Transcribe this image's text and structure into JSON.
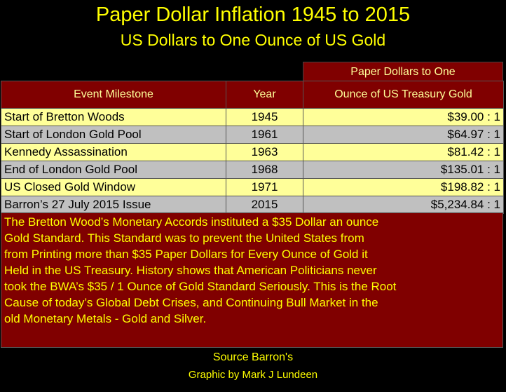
{
  "title": "Paper Dollar Inflation 1945 to 2015",
  "subtitle": "US Dollars to One Ounce of US Gold",
  "table": {
    "header_top": "Paper Dollars to One",
    "headers": [
      "Event Milestone",
      "Year",
      "Ounce of US Treasury Gold"
    ],
    "rows": [
      {
        "event": "Start of Bretton Woods",
        "year": "1945",
        "price": "$39.00 : 1"
      },
      {
        "event": "Start of London Gold Pool",
        "year": "1961",
        "price": "$64.97 : 1"
      },
      {
        "event": "Kennedy Assassination",
        "year": "1963",
        "price": "$81.42 : 1"
      },
      {
        "event": "End of London Gold Pool",
        "year": "1968",
        "price": "$135.01 : 1"
      },
      {
        "event": "US Closed Gold Window",
        "year": "1971",
        "price": "$198.82 : 1"
      },
      {
        "event": "Barron’s 27 July 2015 Issue",
        "year": "2015",
        "price": "$5,234.84 : 1"
      }
    ]
  },
  "note_lines": [
    "The Bretton Wood’s Monetary Accords instituted a $35 Dollar an ounce",
    "Gold Standard.  This Standard was to prevent the United States from",
    "from Printing more than $35 Paper Dollars for Every Ounce of Gold it",
    "Held in the US Treasury. History shows that American Politicians never",
    "took the BWA’s $35 / 1 Ounce of Gold Standard Seriously.  This is the Root",
    "Cause of today’s Global Debt Crises, and Continuing Bull Market in the",
    "old Monetary Metals - Gold and Silver."
  ],
  "source": "Source Barron's",
  "credit": "Graphic by Mark J Lundeen",
  "colors": {
    "background": "#000000",
    "text_yellow": "#ffff00",
    "header_maroon": "#800000",
    "row_yellow": "#ffff99",
    "row_gray": "#c0c0c0"
  }
}
